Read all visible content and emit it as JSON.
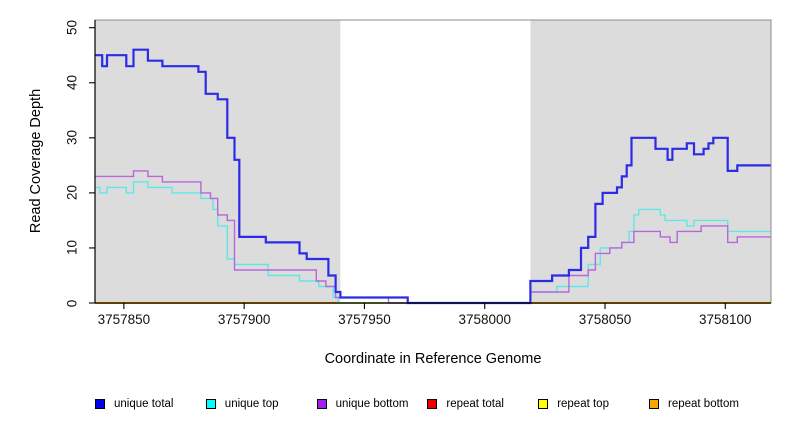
{
  "figure": {
    "xlabel": "Coordinate in Reference Genome",
    "ylabel": "Read Coverage Depth"
  },
  "chart_data": {
    "type": "line",
    "subtype": "step-after",
    "title": "",
    "xlabel": "Coordinate in Reference Genome",
    "ylabel": "Read Coverage Depth",
    "xlim": [
      3757838,
      3758119
    ],
    "ylim": [
      0,
      51.4
    ],
    "x_ticks": [
      3757850,
      3757900,
      3757950,
      3758000,
      3758050,
      3758100
    ],
    "y_ticks": [
      0,
      10,
      20,
      30,
      40,
      50
    ],
    "grid": false,
    "plot_background": "#DCDCDC",
    "masked_region": {
      "x_start": 3757940,
      "x_end": 3758019,
      "color": "#FFFFFF"
    },
    "legend_position": "bottom",
    "draw_order": [
      3,
      4,
      5,
      1,
      2,
      0
    ],
    "series": [
      {
        "name": "unique total",
        "legend_color": "#0000EE",
        "line_color": "#2B2BE8",
        "line_width": 2.2,
        "points": [
          [
            3757838,
            45
          ],
          [
            3757841,
            43
          ],
          [
            3757843,
            45
          ],
          [
            3757851,
            43
          ],
          [
            3757854,
            46
          ],
          [
            3757860,
            44
          ],
          [
            3757866,
            43
          ],
          [
            3757881,
            42
          ],
          [
            3757884,
            38
          ],
          [
            3757889,
            37
          ],
          [
            3757893,
            30
          ],
          [
            3757896,
            26
          ],
          [
            3757898,
            12
          ],
          [
            3757909,
            11
          ],
          [
            3757923,
            9
          ],
          [
            3757926,
            8
          ],
          [
            3757935,
            5
          ],
          [
            3757938,
            2
          ],
          [
            3757940,
            1
          ],
          [
            3757968,
            0
          ],
          [
            3758019,
            4
          ],
          [
            3758028,
            5
          ],
          [
            3758035,
            6
          ],
          [
            3758040,
            10
          ],
          [
            3758043,
            12
          ],
          [
            3758046,
            18
          ],
          [
            3758049,
            20
          ],
          [
            3758055,
            21
          ],
          [
            3758057,
            23
          ],
          [
            3758059,
            25
          ],
          [
            3758061,
            30
          ],
          [
            3758071,
            28
          ],
          [
            3758076,
            26
          ],
          [
            3758078,
            28
          ],
          [
            3758084,
            29
          ],
          [
            3758087,
            27
          ],
          [
            3758091,
            28
          ],
          [
            3758093,
            29
          ],
          [
            3758095,
            30
          ],
          [
            3758101,
            24
          ],
          [
            3758105,
            25
          ],
          [
            3758119,
            25
          ]
        ]
      },
      {
        "name": "unique top",
        "legend_color": "#00FFFF",
        "line_color": "#5FE7E7",
        "line_width": 1.4,
        "points": [
          [
            3757838,
            21
          ],
          [
            3757840,
            20
          ],
          [
            3757843,
            21
          ],
          [
            3757851,
            20
          ],
          [
            3757854,
            22
          ],
          [
            3757860,
            21
          ],
          [
            3757870,
            20
          ],
          [
            3757882,
            19
          ],
          [
            3757887,
            17
          ],
          [
            3757889,
            14
          ],
          [
            3757893,
            8
          ],
          [
            3757896,
            7
          ],
          [
            3757910,
            5
          ],
          [
            3757923,
            4
          ],
          [
            3757931,
            3
          ],
          [
            3757937,
            1
          ],
          [
            3757939,
            0
          ],
          [
            3758019,
            2
          ],
          [
            3758030,
            3
          ],
          [
            3758043,
            7
          ],
          [
            3758048,
            10
          ],
          [
            3758057,
            11
          ],
          [
            3758060,
            13
          ],
          [
            3758062,
            16
          ],
          [
            3758064,
            17
          ],
          [
            3758073,
            16
          ],
          [
            3758075,
            15
          ],
          [
            3758084,
            14
          ],
          [
            3758087,
            15
          ],
          [
            3758101,
            13
          ],
          [
            3758119,
            13
          ]
        ]
      },
      {
        "name": "unique bottom",
        "legend_color": "#A020F0",
        "line_color": "#B766DB",
        "line_width": 1.4,
        "points": [
          [
            3757838,
            23
          ],
          [
            3757854,
            24
          ],
          [
            3757860,
            23
          ],
          [
            3757866,
            22
          ],
          [
            3757882,
            20
          ],
          [
            3757886,
            19
          ],
          [
            3757889,
            16
          ],
          [
            3757893,
            15
          ],
          [
            3757896,
            6
          ],
          [
            3757930,
            4
          ],
          [
            3757934,
            3
          ],
          [
            3757938,
            1
          ],
          [
            3757960,
            0
          ],
          [
            3758019,
            2
          ],
          [
            3758035,
            5
          ],
          [
            3758043,
            6
          ],
          [
            3758046,
            9
          ],
          [
            3758052,
            10
          ],
          [
            3758057,
            11
          ],
          [
            3758062,
            13
          ],
          [
            3758073,
            12
          ],
          [
            3758077,
            11
          ],
          [
            3758080,
            13
          ],
          [
            3758090,
            14
          ],
          [
            3758101,
            11
          ],
          [
            3758105,
            12
          ],
          [
            3758119,
            12
          ]
        ]
      },
      {
        "name": "repeat total",
        "legend_color": "#EE0000",
        "line_color": "#EE0000",
        "line_width": 1.4,
        "points": [
          [
            3757838,
            0
          ],
          [
            3758119,
            0
          ]
        ]
      },
      {
        "name": "repeat top",
        "legend_color": "#FFFF00",
        "line_color": "#FFFF00",
        "line_width": 1.4,
        "points": [
          [
            3757838,
            0
          ],
          [
            3758119,
            0
          ]
        ]
      },
      {
        "name": "repeat bottom",
        "legend_color": "#FFA500",
        "line_color": "#FFA500",
        "line_width": 1.7,
        "points": [
          [
            3757838,
            0
          ],
          [
            3758119,
            0
          ]
        ]
      }
    ]
  }
}
